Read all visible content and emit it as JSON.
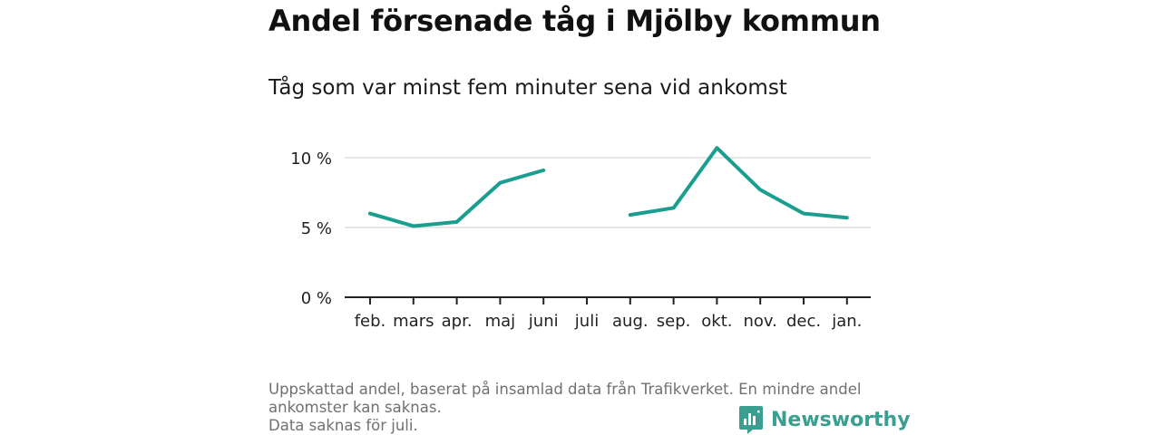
{
  "chart_data": {
    "type": "line",
    "title": "Andel försenade tåg i Mjölby kommun",
    "subtitle": "Tåg som var minst fem minuter sena vid ankomst",
    "categories": [
      "feb.",
      "mars",
      "apr.",
      "maj",
      "juni",
      "juli",
      "aug.",
      "sep.",
      "okt.",
      "nov.",
      "dec.",
      "jan."
    ],
    "series": [
      {
        "values": [
          6.0,
          5.1,
          5.4,
          8.2,
          9.1,
          null,
          5.9,
          6.4,
          10.7,
          7.7,
          6.0,
          5.7
        ],
        "color": "#1a9e8f"
      }
    ],
    "yticks": [
      0,
      5,
      10
    ],
    "ytick_labels": [
      "0 %",
      "5 %",
      "10 %"
    ],
    "ylim": [
      0,
      11
    ],
    "grid": true
  },
  "footnote": {
    "line1": "Uppskattad andel, baserat på insamlad data från Trafikverket. En mindre andel ankomster kan saknas.",
    "line2": "Data saknas för juli."
  },
  "brand": {
    "name": "Newsworthy",
    "icon": "bar-chart-icon",
    "color": "#3a9e90"
  }
}
